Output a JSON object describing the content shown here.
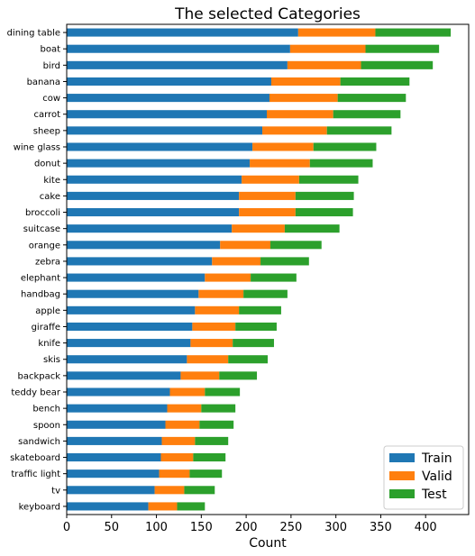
{
  "chart_data": {
    "type": "bar",
    "orientation": "horizontal",
    "stacked": true,
    "title": "The selected Categories",
    "xlabel": "Count",
    "ylabel": "",
    "xlim": [
      0,
      448
    ],
    "xticks": [
      0,
      50,
      100,
      150,
      200,
      250,
      300,
      350,
      400
    ],
    "grid": false,
    "legend_position": "bottom-right",
    "categories": [
      "dining table",
      "boat",
      "bird",
      "banana",
      "cow",
      "carrot",
      "sheep",
      "wine glass",
      "donut",
      "kite",
      "cake",
      "broccoli",
      "suitcase",
      "orange",
      "zebra",
      "elephant",
      "handbag",
      "apple",
      "giraffe",
      "knife",
      "skis",
      "backpack",
      "teddy bear",
      "bench",
      "spoon",
      "sandwich",
      "skateboard",
      "traffic light",
      "tv",
      "keyboard"
    ],
    "series": [
      {
        "name": "Train",
        "color": "#1f77b4",
        "values": [
          258,
          249,
          246,
          228,
          226,
          223,
          218,
          207,
          204,
          195,
          192,
          192,
          184,
          171,
          162,
          154,
          147,
          143,
          140,
          138,
          134,
          127,
          115,
          112,
          110,
          106,
          105,
          103,
          98,
          91
        ]
      },
      {
        "name": "Valid",
        "color": "#ff7f0e",
        "values": [
          86,
          84,
          82,
          77,
          76,
          74,
          72,
          68,
          67,
          64,
          63,
          63,
          59,
          56,
          54,
          51,
          50,
          49,
          48,
          47,
          46,
          43,
          39,
          38,
          38,
          37,
          36,
          34,
          33,
          32
        ]
      },
      {
        "name": "Test",
        "color": "#2ca02c",
        "values": [
          84,
          82,
          80,
          77,
          76,
          75,
          72,
          70,
          70,
          66,
          65,
          64,
          61,
          57,
          54,
          51,
          49,
          47,
          46,
          46,
          44,
          42,
          39,
          38,
          38,
          37,
          36,
          36,
          34,
          31
        ]
      }
    ]
  }
}
